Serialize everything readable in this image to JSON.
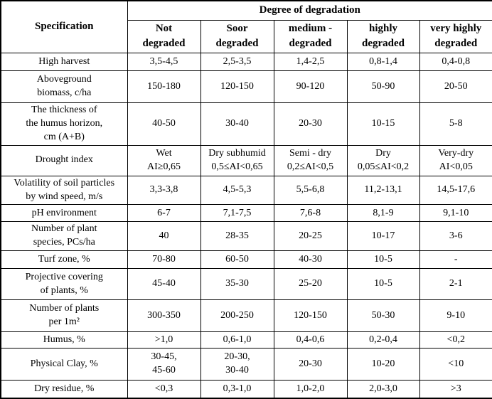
{
  "table": {
    "header": {
      "spec_label": "Specification",
      "degradation_label": "Degree of degradation",
      "degree_columns": [
        "Not\ndegraded",
        "Soor\ndegraded",
        "medium -\ndegraded",
        "highly\ndegraded",
        "very highly\ndegraded"
      ]
    },
    "rows": [
      {
        "label": "High harvest",
        "values": [
          "3,5-4,5",
          "2,5-3,5",
          "1,4-2,5",
          "0,8-1,4",
          "0,4-0,8"
        ]
      },
      {
        "label": "Aboveground\nbiomass, c/ha",
        "values": [
          "150-180",
          "120-150",
          "90-120",
          "50-90",
          "20-50"
        ]
      },
      {
        "label": "The thickness of\nthe humus horizon,\ncm (A+B)",
        "values": [
          "40-50",
          "30-40",
          "20-30",
          "10-15",
          "5-8"
        ]
      },
      {
        "label": "Drought index",
        "values": [
          "Wet\nAI≥0,65",
          "Dry subhumid\n0,5≤AI<0,65",
          "Semi - dry\n0,2≤AI<0,5",
          "Dry\n0,05≤AI<0,2",
          "Very-dry\nAI<0,05"
        ]
      },
      {
        "label": "Volatility of soil particles\nby wind speed, m/s",
        "values": [
          "3,3-3,8",
          "4,5-5,3",
          "5,5-6,8",
          "11,2-13,1",
          "14,5-17,6"
        ]
      },
      {
        "label": "pH environment",
        "values": [
          "6-7",
          "7,1-7,5",
          "7,6-8",
          "8,1-9",
          "9,1-10"
        ]
      },
      {
        "label": "Number of plant\nspecies, PCs/ha",
        "values": [
          "40",
          "28-35",
          "20-25",
          "10-17",
          "3-6"
        ]
      },
      {
        "label": "Turf zone, %",
        "values": [
          "70-80",
          "60-50",
          "40-30",
          "10-5",
          "-"
        ]
      },
      {
        "label": "Projective covering\nof plants, %",
        "values": [
          "45-40",
          "35-30",
          "25-20",
          "10-5",
          "2-1"
        ]
      },
      {
        "label": "Number of plants\nper 1m²",
        "values": [
          "300-350",
          "200-250",
          "120-150",
          "50-30",
          "9-10"
        ]
      },
      {
        "label": "Humus, %",
        "values": [
          ">1,0",
          "0,6-1,0",
          "0,4-0,6",
          "0,2-0,4",
          "<0,2"
        ]
      },
      {
        "label": "Physical Clay, %",
        "values": [
          "30-45,\n45-60",
          "20-30,\n30-40",
          "20-30",
          "10-20",
          "<10"
        ]
      },
      {
        "label": "Dry residue, %",
        "values": [
          "<0,3",
          "0,3-1,0",
          "1,0-2,0",
          "2,0-3,0",
          ">3"
        ]
      }
    ]
  }
}
